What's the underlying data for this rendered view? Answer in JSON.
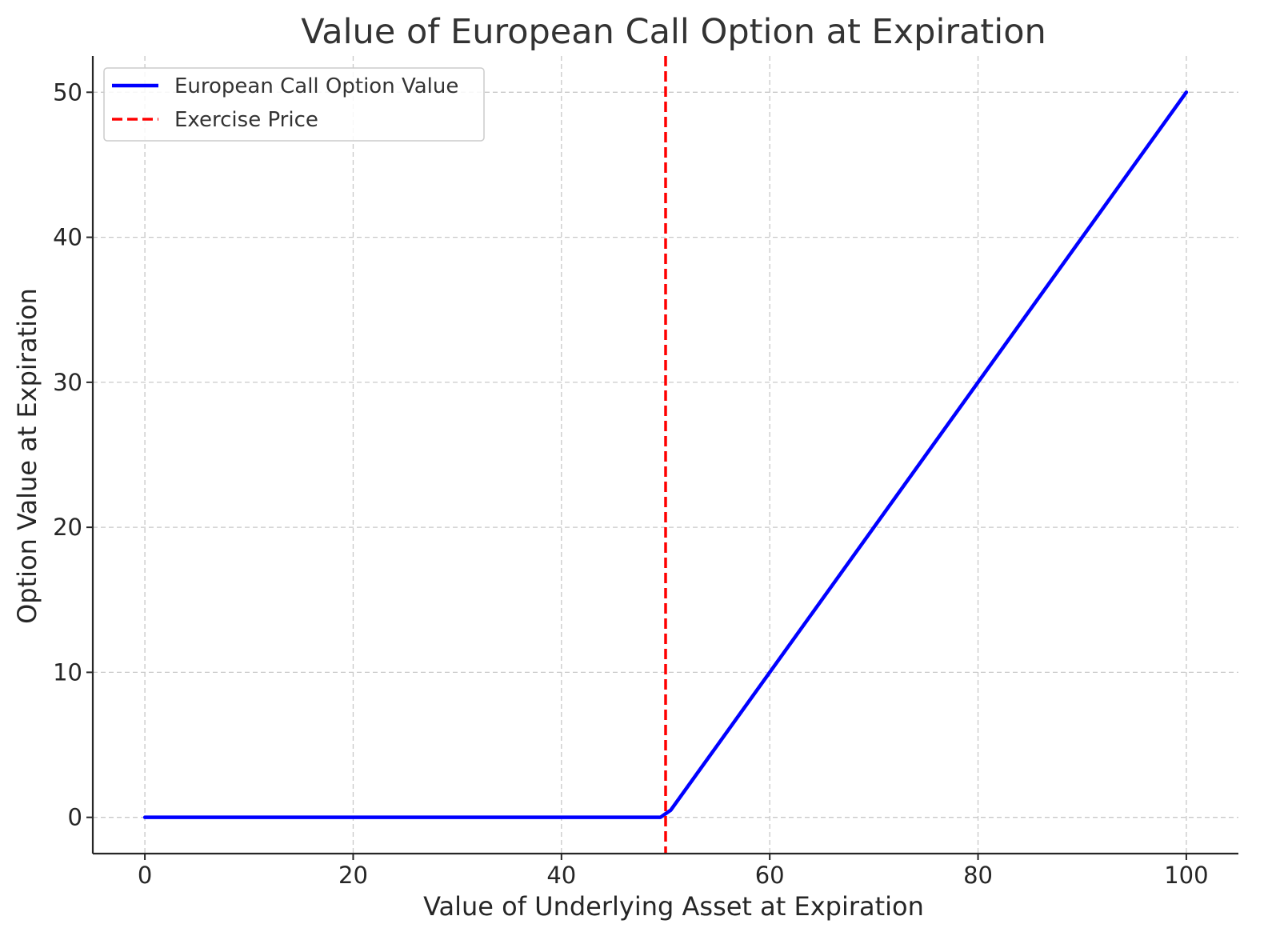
{
  "chart_data": {
    "type": "line",
    "title": "Value of European Call Option at Expiration",
    "xlabel": "Value of Underlying Asset at Expiration",
    "ylabel": "Option Value at Expiration",
    "xlim": [
      -5,
      105
    ],
    "ylim": [
      -2.5,
      52.5
    ],
    "xticks": [
      0,
      20,
      40,
      60,
      80,
      100
    ],
    "yticks": [
      0,
      10,
      20,
      30,
      40,
      50
    ],
    "grid": true,
    "legend_position": "upper-left",
    "series": [
      {
        "name": "European Call Option Value",
        "color": "#0000ff",
        "style": "solid",
        "x": [
          0,
          49.5,
          50.5,
          100
        ],
        "y": [
          0,
          0,
          0.5,
          50
        ]
      },
      {
        "name": "Exercise Price",
        "color": "#ff0000",
        "style": "dashed",
        "vertical_line_x": 50
      }
    ]
  }
}
